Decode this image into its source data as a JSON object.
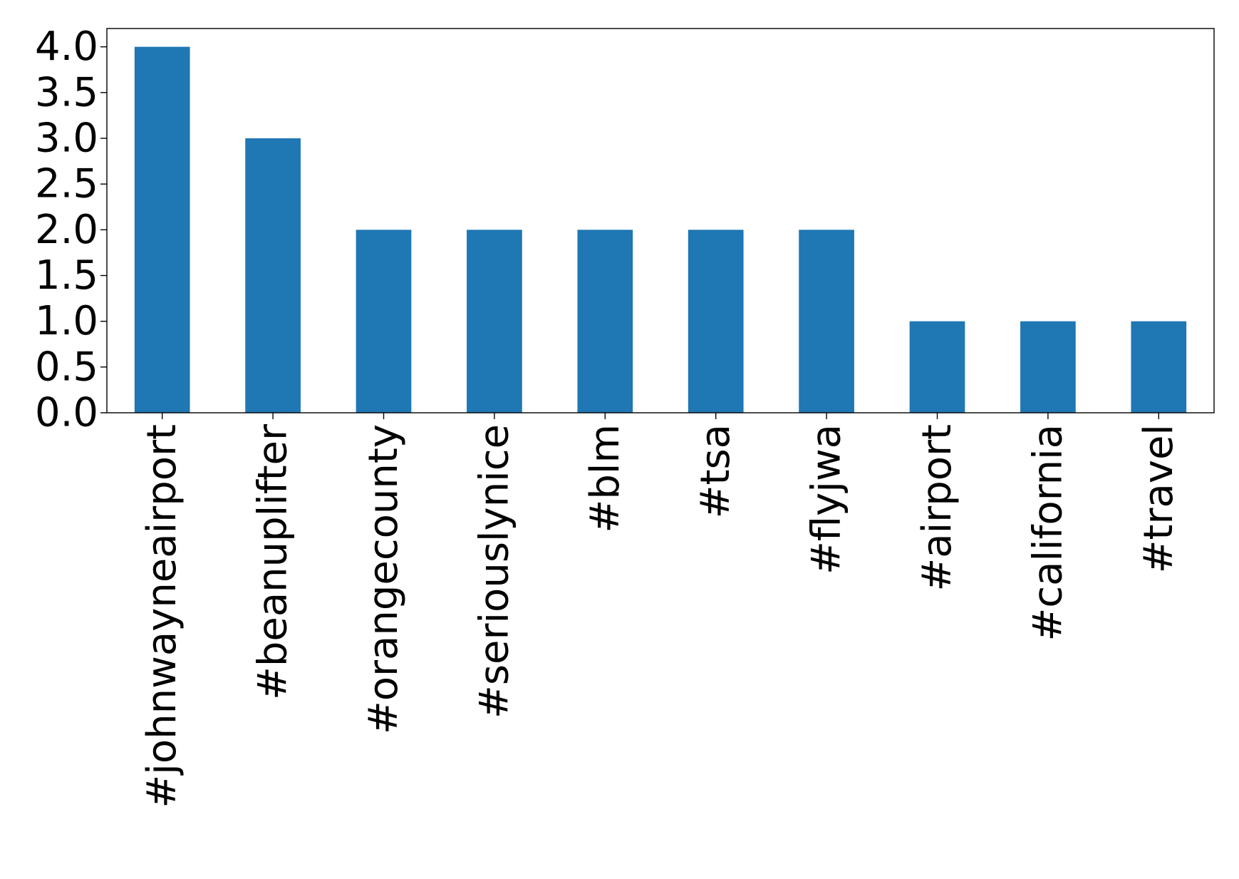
{
  "chart_data": {
    "type": "bar",
    "title": "",
    "xlabel": "",
    "ylabel": "",
    "categories": [
      "#johnwayneairport",
      "#beanuplifter",
      "#orangecounty",
      "#seriouslynice",
      "#blm",
      "#tsa",
      "#flyjwa",
      "#airport",
      "#california",
      "#travel"
    ],
    "values": [
      4,
      3,
      2,
      2,
      2,
      2,
      2,
      1,
      1,
      1
    ],
    "yticks": [
      "0.0",
      "0.5",
      "1.0",
      "1.5",
      "2.0",
      "2.5",
      "3.0",
      "3.5",
      "4.0"
    ],
    "ylim": [
      0,
      4.2
    ],
    "grid": false,
    "legend": "none",
    "colors": {
      "bar": "#1f77b4",
      "axis": "#000000",
      "background": "#ffffff"
    }
  }
}
